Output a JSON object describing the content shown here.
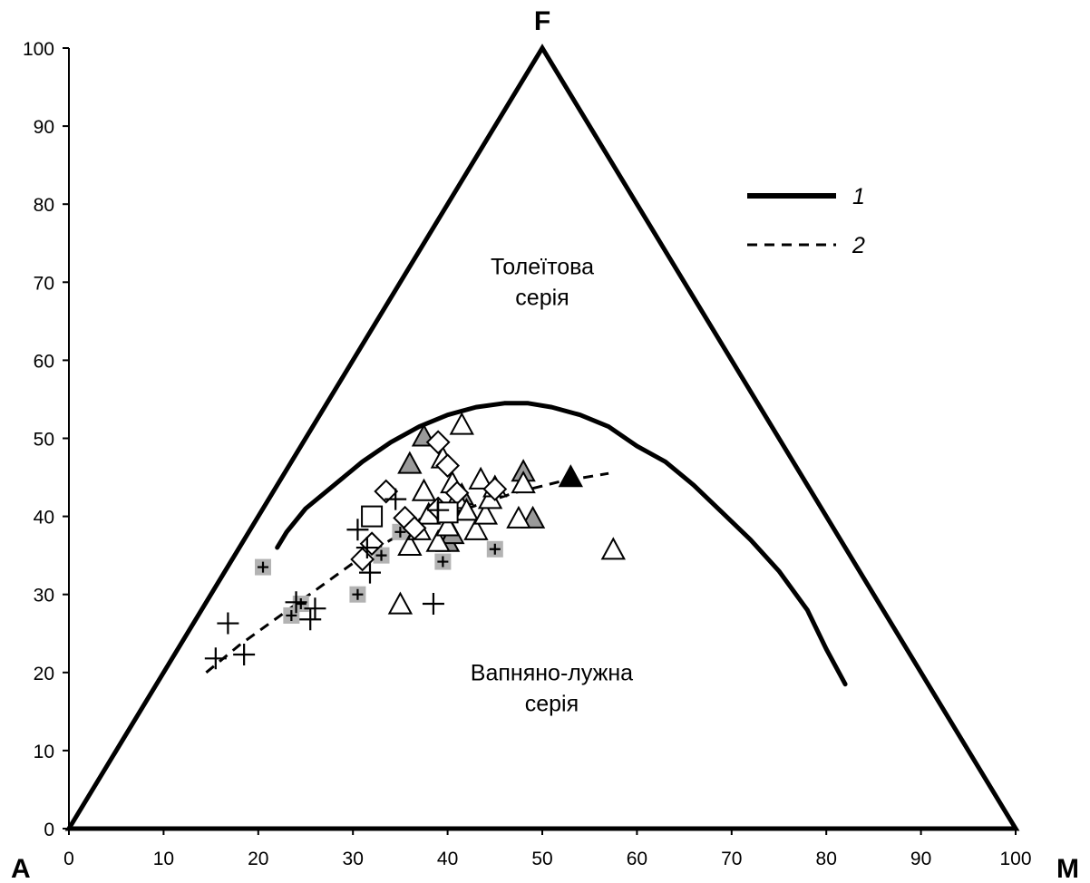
{
  "chart_data": {
    "type": "scatter",
    "xlim": [
      0,
      100
    ],
    "ylim": [
      0,
      100
    ],
    "x_ticks": [
      "0",
      "10",
      "20",
      "30",
      "40",
      "50",
      "60",
      "70",
      "80",
      "90",
      "100"
    ],
    "y_ticks": [
      "0",
      "10",
      "20",
      "30",
      "40",
      "50",
      "60",
      "70",
      "80",
      "90",
      "100"
    ],
    "corner_labels": {
      "left": "A",
      "right": "M",
      "top": "F"
    },
    "region_labels": [
      {
        "lines": [
          "Толеїтова",
          "серія"
        ],
        "x": 50,
        "y": 71
      },
      {
        "lines": [
          "Вапняно-лужна",
          "серія"
        ],
        "x": 51,
        "y": 19
      }
    ],
    "legend": [
      {
        "label": "1",
        "style": "solid",
        "placement": "top-right"
      },
      {
        "label": "2",
        "style": "dashed",
        "placement": "top-right"
      }
    ],
    "lines": [
      {
        "legend": "1",
        "style": "solid",
        "points": [
          [
            22,
            36
          ],
          [
            23,
            38
          ],
          [
            25,
            41
          ],
          [
            28,
            44
          ],
          [
            31,
            47
          ],
          [
            34,
            49.5
          ],
          [
            37,
            51.5
          ],
          [
            40,
            53
          ],
          [
            43,
            54
          ],
          [
            46,
            54.5
          ],
          [
            48.5,
            54.5
          ],
          [
            51,
            54
          ],
          [
            54,
            53
          ],
          [
            57,
            51.5
          ],
          [
            60,
            49
          ],
          [
            63,
            47
          ],
          [
            66,
            44
          ],
          [
            69,
            40.5
          ],
          [
            72,
            37
          ],
          [
            75,
            33
          ],
          [
            78,
            28
          ],
          [
            80,
            23
          ],
          [
            82,
            18.5
          ]
        ]
      },
      {
        "legend": "2",
        "style": "dashed",
        "points": [
          [
            14.5,
            20
          ],
          [
            18,
            23.5
          ],
          [
            22,
            27
          ],
          [
            26,
            30.5
          ],
          [
            30,
            34
          ],
          [
            34,
            37
          ],
          [
            38,
            39.5
          ],
          [
            42,
            41
          ],
          [
            47,
            43
          ],
          [
            52,
            44.5
          ],
          [
            57,
            45.5
          ]
        ]
      }
    ],
    "series": [
      {
        "marker": "plus",
        "points": [
          [
            15.5,
            21.8
          ],
          [
            16.8,
            26.3
          ],
          [
            18.5,
            22.3
          ],
          [
            24,
            29
          ],
          [
            25.5,
            26.8
          ],
          [
            26,
            28.2
          ],
          [
            30.5,
            38.3
          ],
          [
            31.5,
            36
          ],
          [
            31.8,
            32.8
          ],
          [
            34.5,
            42.2
          ],
          [
            38.5,
            28.8
          ],
          [
            39,
            40.8
          ]
        ]
      },
      {
        "marker": "plus-gray-square",
        "points": [
          [
            20.5,
            33.5
          ],
          [
            23.5,
            27.3
          ],
          [
            24.5,
            28.8
          ],
          [
            30.5,
            30
          ],
          [
            33,
            35
          ],
          [
            35,
            38
          ],
          [
            39.5,
            34.2
          ],
          [
            45,
            35.8
          ]
        ]
      },
      {
        "marker": "triangle-open",
        "points": [
          [
            35,
            28.5
          ],
          [
            36,
            36
          ],
          [
            37,
            38
          ],
          [
            37.5,
            43
          ],
          [
            38,
            40
          ],
          [
            39,
            36.5
          ],
          [
            39.5,
            47.2
          ],
          [
            40,
            38.5
          ],
          [
            40.5,
            44
          ],
          [
            41,
            42
          ],
          [
            41.5,
            51.5
          ],
          [
            42,
            40.5
          ],
          [
            43,
            38
          ],
          [
            43.5,
            44.5
          ],
          [
            44,
            40
          ],
          [
            44.5,
            42
          ],
          [
            45,
            43.5
          ],
          [
            47.5,
            39.5
          ],
          [
            48,
            44
          ],
          [
            57.5,
            35.5
          ]
        ]
      },
      {
        "marker": "triangle-gray",
        "points": [
          [
            36,
            46.5
          ],
          [
            37.5,
            50
          ],
          [
            40,
            36.5
          ],
          [
            40.5,
            37.5
          ],
          [
            41.5,
            42.5
          ],
          [
            42,
            40.5
          ],
          [
            48,
            45.5
          ],
          [
            49,
            39.5
          ]
        ]
      },
      {
        "marker": "triangle-black",
        "points": [
          [
            53,
            44.8
          ]
        ]
      },
      {
        "marker": "diamond-open",
        "points": [
          [
            31,
            34.5
          ],
          [
            32,
            36.5
          ],
          [
            33.5,
            43.2
          ],
          [
            35.5,
            39.8
          ],
          [
            36.5,
            38.5
          ],
          [
            39,
            41
          ],
          [
            39,
            49.5
          ],
          [
            40,
            46.5
          ],
          [
            41,
            43
          ],
          [
            45,
            43.5
          ]
        ]
      },
      {
        "marker": "square-open",
        "points": [
          [
            32,
            40
          ],
          [
            40,
            40.5
          ]
        ]
      }
    ]
  }
}
